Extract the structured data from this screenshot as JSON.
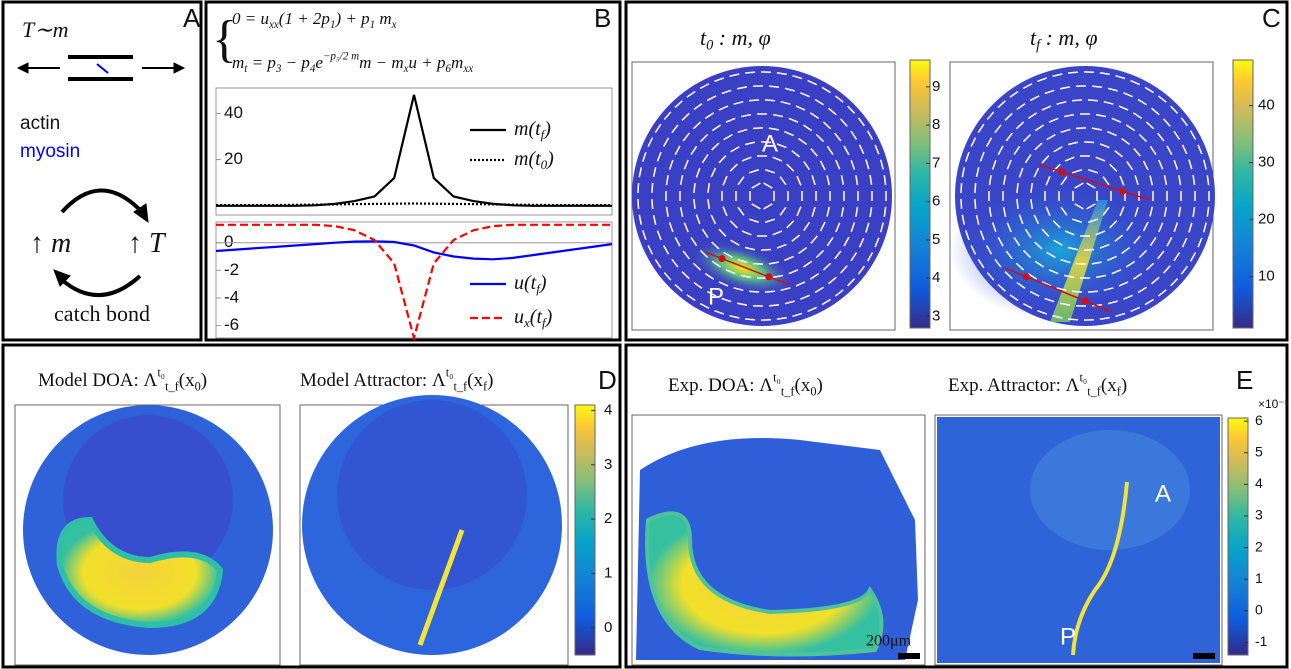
{
  "panel_a": {
    "label": "A",
    "tension": [
      {
        "t": "T∼m"
      }
    ],
    "actin": "actin",
    "myosin": "myosin",
    "m_up": [
      {
        "t": "↑ m"
      }
    ],
    "t_up": [
      {
        "t": "↑ T"
      }
    ],
    "caption": "catch bond"
  },
  "panel_b": {
    "label": "B",
    "equations": [
      [
        {
          "t": "0 = u"
        },
        {
          "sub": "xx"
        },
        {
          "t": "(1 + 2p"
        },
        {
          "sub": "1"
        },
        {
          "t": ") + p"
        },
        {
          "sub": "1"
        },
        {
          "t": " m"
        },
        {
          "sub": "x"
        }
      ],
      [
        {
          "t": "m"
        },
        {
          "sub": "t"
        },
        {
          "t": " = p"
        },
        {
          "sub": "3"
        },
        {
          "t": " − p"
        },
        {
          "sub": "4"
        },
        {
          "t": "e"
        },
        {
          "sup": "−p₅/2 m"
        },
        {
          "t": "m − m"
        },
        {
          "sub": "x"
        },
        {
          "t": "u + p"
        },
        {
          "sub": "6"
        },
        {
          "t": "m"
        },
        {
          "sub": "xx"
        }
      ]
    ],
    "plots": [
      {
        "type": "line",
        "ylim": [
          -4,
          51
        ],
        "yticks": [
          20,
          40
        ],
        "series": [
          {
            "name": [
              {
                "t": "m(t"
              },
              {
                "sub": "f"
              },
              {
                "t": ")"
              }
            ],
            "color": "#000000",
            "dash": "solid",
            "values": [
              0,
              0,
              0,
              0,
              0,
              0.2,
              0.8,
              2,
              4,
              12,
              48,
              12,
              4,
              2,
              0.8,
              0.2,
              0,
              0,
              0,
              0,
              0
            ]
          },
          {
            "name": [
              {
                "t": "m(t"
              },
              {
                "sub": "0"
              },
              {
                "t": ")"
              }
            ],
            "color": "#000000",
            "dash": "dotted",
            "values": [
              0.3,
              0.3,
              0.3,
              0.3,
              0.4,
              0.5,
              0.6,
              0.7,
              0.8,
              0.9,
              1,
              0.9,
              0.8,
              0.7,
              0.6,
              0.5,
              0.4,
              0.3,
              0.3,
              0.3,
              0.3
            ]
          }
        ]
      },
      {
        "type": "line",
        "ylim": [
          -6.9,
          1.5
        ],
        "yticks": [
          0,
          -2,
          -4,
          -6
        ],
        "series": [
          {
            "name": [
              {
                "t": "u(t"
              },
              {
                "sub": "f"
              },
              {
                "t": ")"
              }
            ],
            "color": "#0000ff",
            "dash": "solid",
            "values": [
              -0.6,
              -0.5,
              -0.4,
              -0.3,
              -0.2,
              -0.1,
              0,
              0.08,
              0.1,
              0.05,
              -0.2,
              -0.7,
              -1.0,
              -1.15,
              -1.2,
              -1.1,
              -0.9,
              -0.7,
              -0.5,
              -0.3,
              -0.1
            ]
          },
          {
            "name": [
              {
                "t": "u"
              },
              {
                "sub": "x"
              },
              {
                "t": "(t"
              },
              {
                "sub": "f"
              },
              {
                "t": ")"
              }
            ],
            "color": "#ff0000",
            "dash": "dashed",
            "values": [
              1.3,
              1.3,
              1.3,
              1.3,
              1.3,
              1.3,
              1.2,
              0.9,
              0.2,
              -1.5,
              -6.9,
              -1.5,
              0.2,
              0.9,
              1.2,
              1.3,
              1.3,
              1.3,
              1.3,
              1.3,
              1.3
            ]
          }
        ]
      }
    ]
  },
  "panel_c": {
    "label": "C",
    "anterior": "A",
    "posterior": "P",
    "maps": [
      {
        "title": [
          {
            "t": "t"
          },
          {
            "sub": "0"
          },
          {
            "t": " :  m, φ"
          }
        ],
        "colorbar": {
          "lim": [
            2.7,
            9.7
          ],
          "ticks": [
            3,
            4,
            5,
            6,
            7,
            8,
            9
          ]
        }
      },
      {
        "title": [
          {
            "t": "t"
          },
          {
            "sub": "f"
          },
          {
            "t": " :  m, φ"
          }
        ],
        "colorbar": {
          "lim": [
            1,
            48
          ],
          "ticks": [
            10,
            20,
            30,
            40
          ]
        }
      }
    ]
  },
  "panel_d": {
    "label": "D",
    "titles": [
      [
        {
          "t": "Model DOA: Λ"
        },
        {
          "sup": "t₀"
        },
        {
          "sub": "t_f"
        },
        {
          "t": "(x"
        },
        {
          "sub": "0"
        },
        {
          "t": ")"
        }
      ],
      [
        {
          "t": "Model Attractor: Λ"
        },
        {
          "sup": "t₀"
        },
        {
          "sub": "t_f"
        },
        {
          "t": "(x"
        },
        {
          "sub": "f"
        },
        {
          "t": ")"
        }
      ]
    ],
    "colorbar": {
      "lim": [
        -0.5,
        4.1
      ],
      "ticks": [
        0,
        1,
        2,
        3,
        4
      ]
    }
  },
  "panel_e": {
    "label": "E",
    "anterior": "A",
    "posterior": "P",
    "scale_bar": "200μm",
    "titles": [
      [
        {
          "t": "Exp. DOA: Λ"
        },
        {
          "sup": "t₀"
        },
        {
          "sub": "t_f"
        },
        {
          "t": "(x"
        },
        {
          "sub": "0"
        },
        {
          "t": ")"
        }
      ],
      [
        {
          "t": "Exp. Attractor: Λ"
        },
        {
          "sup": "t₀"
        },
        {
          "sub": "t_f"
        },
        {
          "t": "(x"
        },
        {
          "sub": "f"
        },
        {
          "t": ")"
        }
      ]
    ],
    "colorbar": {
      "lim": [
        -1.4,
        6.1
      ],
      "ticks": [
        -1,
        0,
        1,
        2,
        3,
        4,
        5,
        6
      ],
      "exponent": "×10⁻³"
    }
  }
}
